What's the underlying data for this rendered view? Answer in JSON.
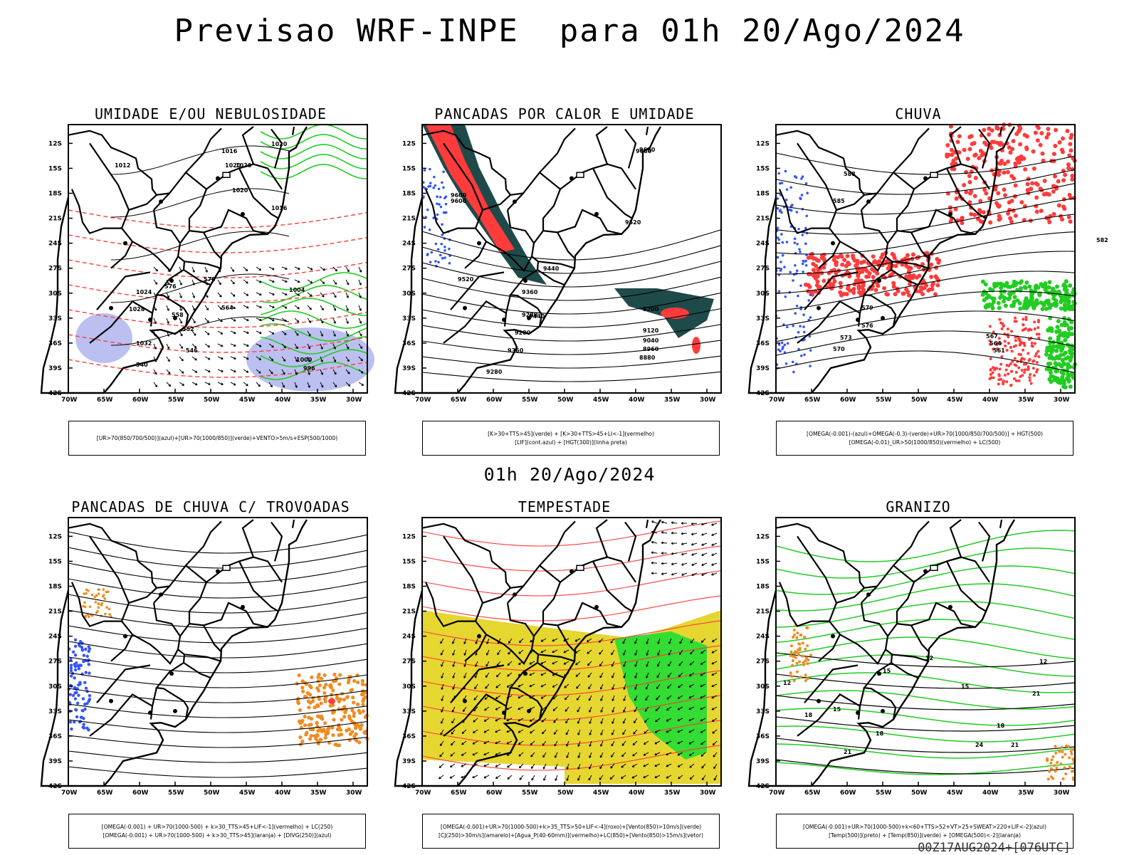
{
  "title": "Previsao WRF-INPE  para 01h 20/Ago/2024",
  "subtitle": "01h 20/Ago/2024",
  "footer": "00Z17AUG2024+[076UTC]",
  "axes": {
    "lat_ticks": [
      "12S",
      "15S",
      "18S",
      "21S",
      "24S",
      "27S",
      "30S",
      "33S",
      "36S",
      "39S",
      "42S"
    ],
    "lon_ticks": [
      "70W",
      "65W",
      "60W",
      "55W",
      "50W",
      "45W",
      "40W",
      "35W",
      "30W"
    ]
  },
  "panels": [
    {
      "title": "UMIDADE E/OU NEBULOSIDADE",
      "legend": [
        "[UR>70(850/700/500)](azul)+[UR>70(1000/850)](verde)+VENTO>5m/s+ESP(500/1000)"
      ],
      "labels": [
        "1012",
        "1020",
        "1016",
        "1020",
        "1020",
        "1024",
        "1028",
        "1032",
        "1000",
        "996",
        "576",
        "570",
        "564",
        "558",
        "552",
        "546",
        "540",
        "1020",
        "1016",
        "1004"
      ]
    },
    {
      "title": "PANCADAS POR CALOR E UMIDADE",
      "legend": [
        "[K>30+TTS>45](verde) + [K>30+TTS>45+LI<-1](vermelho)",
        "[LIF](cont.azul) + [HGT(300)](linha preta)"
      ],
      "labels": [
        "9680",
        "9600",
        "9520",
        "9440",
        "9360",
        "9280",
        "9200",
        "9360",
        "9280",
        "9200",
        "9120",
        "9040",
        "8960",
        "8880",
        "9440",
        "9520",
        "9600",
        "9680"
      ]
    },
    {
      "title": "CHUVA",
      "legend": [
        "[OMEGA(-0.001)-(azul)+OMEGA(-0.3)-(verde)+UR>70(1000/850/700/500)] + HGT(500)",
        "[OMEGA(-0.01)_UR>50(1000/850)(vermelho) + LC(500)"
      ],
      "labels": [
        "588",
        "585",
        "582",
        "579",
        "576",
        "573",
        "570",
        "567",
        "564",
        "561"
      ]
    },
    {
      "title": "PANCADAS DE CHUVA C/ TROVOADAS",
      "legend": [
        "[OMEGA(-0.001) + UR>70(1000-500) + k>30_TTS>45+LIF<-1](vermelho) + LC(250)",
        "[OMEGA(-0.001) + UR>70(1000-500) + k>30_TTS>45](laranja) + [DIVG(250)](azul)"
      ],
      "labels": []
    },
    {
      "title": "TEMPESTADE",
      "legend": [
        "[OMEGA(-0.001)+UR>70(1000-500)+k>35_TTS>50+LIF<-4](roxo)+[Vento(850)>10m/s](verde)",
        "[CJ(250)>30m/s](amarelo)+[Agua_P(40-60mm)](vermelho)+LC(850)+[Vento(850)>15m/s](vetor)"
      ],
      "labels": []
    },
    {
      "title": "GRANIZO",
      "legend": [
        "[OMEGA(-0.001)+UR>70(1000-500)+k<60+TTS>52+VT>25+SWEAT>220+LIF<-2](azul)",
        "[Temp(500)](preto) + [Temp(850)](verde) + [OMEGA(500)<-2](laranja)"
      ],
      "labels": [
        "12",
        "12",
        "15",
        "15",
        "18",
        "18",
        "21",
        "21",
        "24",
        "12",
        "15",
        "18",
        "21"
      ]
    }
  ],
  "colors": {
    "red": "#ff3b3b",
    "green": "#22cc22",
    "blue": "#3355ff",
    "lavender": "#aab0ee",
    "darkteal": "#1e4a4a",
    "yellow": "#e6d630",
    "orange": "#f08a20",
    "lgreen": "#33dd33"
  }
}
